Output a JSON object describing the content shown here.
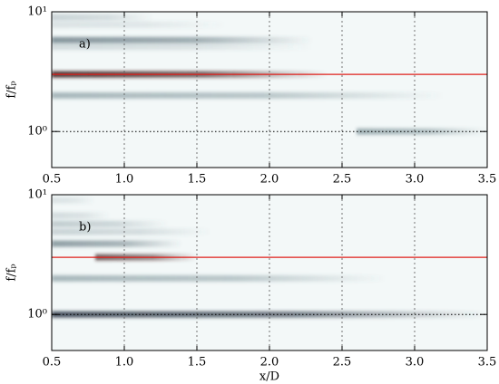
{
  "chart_data": [
    {
      "type": "spectrogram",
      "annotation": "a)",
      "ylabel": "f/fₚ",
      "xlim": [
        0.5,
        3.5
      ],
      "ylim": [
        0.5,
        10
      ],
      "yscale": "log",
      "xticks": [
        0.5,
        {
          "value": 1,
          "label": "1.0"
        },
        1.5,
        {
          "value": 2,
          "label": "2.0"
        },
        2.5,
        {
          "value": 3,
          "label": "3.0"
        },
        3.5
      ],
      "yticks": [
        {
          "value": 1,
          "label": "10⁰"
        },
        {
          "value": 10,
          "label": "10¹"
        }
      ],
      "grid": "x",
      "background": "#f3f8f8",
      "bands": [
        {
          "f": 9.0,
          "x": [
            0.5,
            1.2
          ],
          "intensity": 0.25,
          "color": "#4d6670"
        },
        {
          "f": 7.8,
          "x": [
            0.5,
            1.7
          ],
          "intensity": 0.15,
          "color": "#4d6670"
        },
        {
          "f": 5.8,
          "x": [
            0.5,
            2.3
          ],
          "intensity": 0.6,
          "color": "#3d5560"
        },
        {
          "f": 5.1,
          "x": [
            0.5,
            2.3
          ],
          "intensity": 0.2,
          "color": "#4d6670"
        },
        {
          "f": 3.0,
          "x": [
            0.5,
            2.4
          ],
          "intensity": 0.9,
          "color": "#3a1c1c"
        },
        {
          "f": 2.0,
          "x": [
            0.5,
            3.2
          ],
          "intensity": 0.45,
          "color": "#4d6a72"
        },
        {
          "f": 1.0,
          "x": [
            2.6,
            3.5
          ],
          "intensity": 0.5,
          "color": "#4d6a72"
        }
      ],
      "hlines": [
        {
          "value": 3,
          "color": "#e0201b",
          "style": "solid"
        },
        {
          "value": 1,
          "color": "#000000",
          "style": "dotted"
        }
      ]
    },
    {
      "type": "spectrogram",
      "annotation": "b)",
      "ylabel": "f/fₚ",
      "xlabel": "x/D",
      "xlim": [
        0.5,
        3.5
      ],
      "ylim": [
        0.5,
        10
      ],
      "yscale": "log",
      "xticks": [
        0.5,
        {
          "value": 1,
          "label": "1.0"
        },
        1.5,
        {
          "value": 2,
          "label": "2.0"
        },
        2.5,
        {
          "value": 3,
          "label": "3.0"
        },
        3.5
      ],
      "yticks": [
        {
          "value": 1,
          "label": "10⁰"
        },
        {
          "value": 10,
          "label": "10¹"
        }
      ],
      "grid": "x",
      "background": "#f3f8f8",
      "bands": [
        {
          "f": 9.0,
          "x": [
            0.5,
            0.8
          ],
          "intensity": 0.15,
          "color": "#4d6670"
        },
        {
          "f": 6.7,
          "x": [
            0.5,
            0.9
          ],
          "intensity": 0.2,
          "color": "#4d6670"
        },
        {
          "f": 5.7,
          "x": [
            0.5,
            1.3
          ],
          "intensity": 0.3,
          "color": "#4d6670"
        },
        {
          "f": 4.9,
          "x": [
            0.5,
            1.6
          ],
          "intensity": 0.25,
          "color": "#4d6670"
        },
        {
          "f": 3.9,
          "x": [
            0.5,
            1.4
          ],
          "intensity": 0.55,
          "color": "#3d5560"
        },
        {
          "f": 3.0,
          "x": [
            0.8,
            1.5
          ],
          "intensity": 0.7,
          "color": "#3a1c1c"
        },
        {
          "f": 2.0,
          "x": [
            0.5,
            2.8
          ],
          "intensity": 0.45,
          "color": "#4d6a72"
        },
        {
          "f": 1.0,
          "x": [
            0.5,
            3.5
          ],
          "intensity": 0.85,
          "color": "#2f3b4a"
        }
      ],
      "hlines": [
        {
          "value": 3,
          "color": "#e0201b",
          "style": "solid"
        },
        {
          "value": 1,
          "color": "#000000",
          "style": "dotted"
        }
      ]
    }
  ]
}
